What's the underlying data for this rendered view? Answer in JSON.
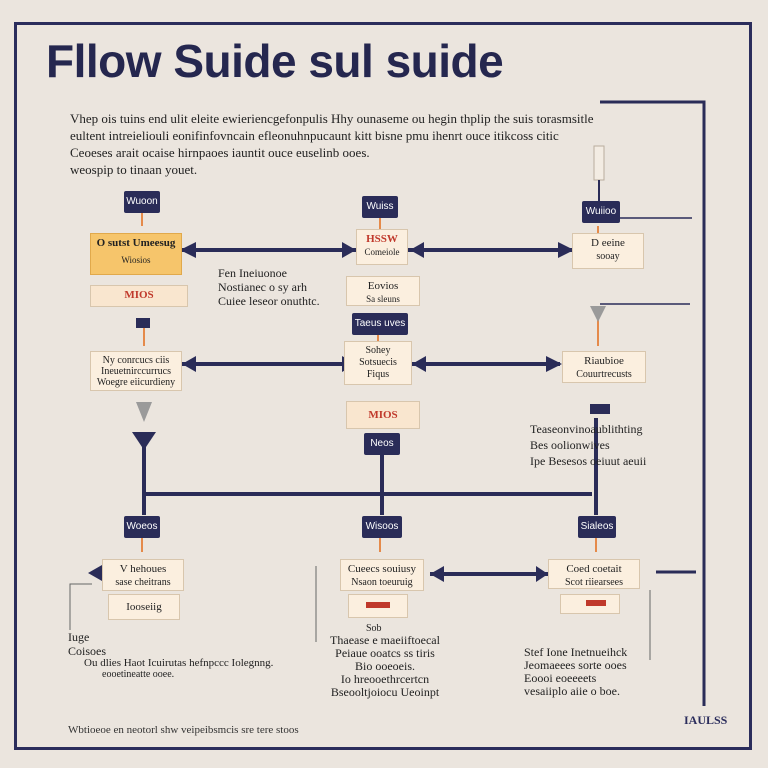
{
  "title": "Fllow Suide sul suide",
  "intro": [
    "Vhep ois tuins end ulit eleite ewieriencgefonpulis Hhy ounaseme ou hegin thplip the suis torasmsitle",
    "eultent intreieliouli eonifinfovncain efleonuhnpucaunt kitt bisne pmu ihenrt ouce itikcoss citic",
    "Ceoeses arait ocaise hirnpaoes iauntit ouce euselinb ooes.",
    "weospip to tinaan youet."
  ],
  "tags": {
    "t1": "Wuoon",
    "t2": "Wuiss",
    "t3": "Wuiioo",
    "t4": "Taeus uves",
    "t5": "Neos",
    "t6": "Woeos",
    "t7": "Wisoos",
    "t8": "Sialeos"
  },
  "boxes": {
    "b1": [
      "O sutst Umeesug",
      "Wiosios"
    ],
    "b2": "MIOS",
    "b3": [
      "HSSW",
      "Comeiole"
    ],
    "b4": [
      "Eovios",
      "Sa sleuns"
    ],
    "b5": [
      "D eeine",
      "sooay"
    ],
    "b6": [
      "Ny conrcucs ciis",
      "Ineuetnirccurrucs",
      "Woegre eiicurdieny"
    ],
    "b7": [
      "Sohey",
      "Sotsuecis",
      "Fiqus"
    ],
    "b8": "MIOS",
    "b9": [
      "Riaubioe",
      "Couurtrecusts"
    ],
    "b10": [
      "V hehoues",
      "sase cheitrans"
    ],
    "b11": "Iooseiig",
    "b12": [
      "Cueecs souiusy",
      "Nsaon toeuruig"
    ],
    "b13": [
      "Coed coetait",
      "Scot riiearsees"
    ]
  },
  "notes": {
    "n1": [
      "Fen Ineiuonoe",
      "Nostianec o sy arh",
      "Cuiee leseor onuthtc."
    ],
    "n2": [
      "Teaseonvinoaublithting",
      "Bes oolionwives",
      "Ipe Besesos oeiuut aeuii"
    ],
    "n3": [
      "Iuge",
      "Coisoes"
    ],
    "n4": "Ou dlies Haot Icuirutas hefnpccc Iolegnng.",
    "n5": "eooetineatte ooee.",
    "n6": "Sob",
    "n7": [
      "Thaease e maeiiftoecal",
      "Peiaue ooatcs ss tiris",
      "Bio ooeoeis.",
      "Io hreooethrcertcn",
      "Bseooltjoiocu Ueoinpt"
    ],
    "n8": [
      "Stef Ione Inetnueihck",
      "Jeomaeees sorte ooes",
      "Eoooi eoeeeets",
      "vesaiiplo aiie o boe."
    ]
  },
  "footer": "Wbtioeoe en neotorl shw veipeibsmcis sre tere stoos",
  "corner": "IAULSS",
  "colors": {
    "navy": "#2a2c58",
    "cream": "#fbefdf",
    "orange": "#f6c56b",
    "accent": "#e58a4a",
    "background": "#ebe5de"
  }
}
